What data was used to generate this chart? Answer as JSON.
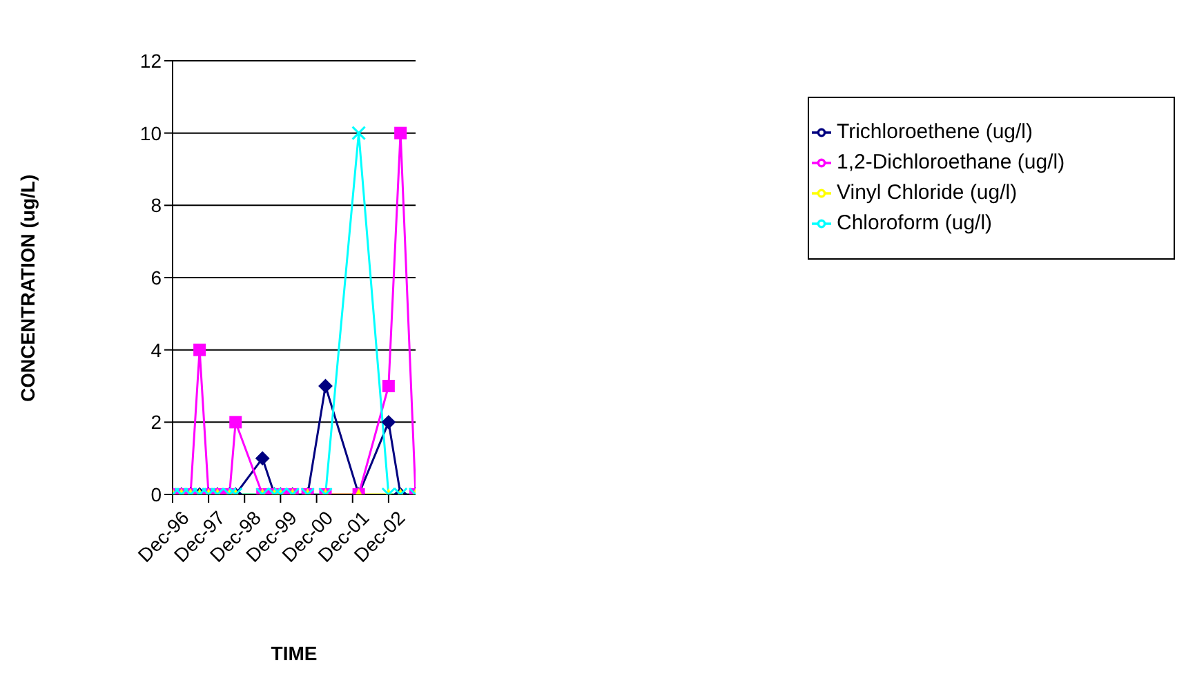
{
  "chart_data": {
    "type": "line",
    "xlabel": "TIME",
    "ylabel": "CONCENTRATION (ug/L)",
    "x": [
      "1996-12",
      "1997-03",
      "1997-06",
      "1997-09",
      "1997-12",
      "1998-03",
      "1998-07",
      "1998-09",
      "1999-06",
      "1999-10",
      "1999-12",
      "2000-04",
      "2000-09",
      "2001-03",
      "2002-02",
      "2002-12",
      "2003-04",
      "2003-09"
    ],
    "series": [
      {
        "name": "Trichloroethene (ug/l)",
        "color": "#000080",
        "marker": "diamond",
        "values": [
          0,
          0,
          0,
          0,
          0,
          0,
          0,
          0,
          1,
          0,
          0,
          0,
          0,
          3,
          0,
          2,
          0,
          0
        ]
      },
      {
        "name": "1,2-Dichloroethane (ug/l)",
        "color": "#ff00ff",
        "marker": "square",
        "values": [
          0,
          0,
          0,
          4,
          0,
          0,
          0,
          2,
          0,
          0,
          0,
          0,
          0,
          0,
          0,
          3,
          10,
          0
        ]
      },
      {
        "name": "Vinyl Chloride (ug/l)",
        "color": "#ffff00",
        "marker": "triangle",
        "values": [
          0,
          0,
          0,
          0,
          0,
          0,
          0,
          0,
          0,
          0,
          0,
          0,
          0,
          0,
          0,
          0,
          0,
          0
        ]
      },
      {
        "name": "Chloroform (ug/l)",
        "color": "#00ffff",
        "marker": "cross",
        "values": [
          0,
          0,
          0,
          0,
          0,
          0,
          0,
          0,
          0,
          0,
          0,
          0,
          0,
          0,
          10,
          0,
          0,
          0
        ]
      }
    ],
    "xlim": [
      "1996-12",
      "2003-09"
    ],
    "xticks": [
      {
        "value": "1996-12",
        "label": "Dec-96"
      },
      {
        "value": "1997-12",
        "label": "Dec-97"
      },
      {
        "value": "1998-12",
        "label": "Dec-98"
      },
      {
        "value": "1999-12",
        "label": "Dec-99"
      },
      {
        "value": "2000-12",
        "label": "Dec-00"
      },
      {
        "value": "2001-12",
        "label": "Dec-01"
      },
      {
        "value": "2002-12",
        "label": "Dec-02"
      }
    ],
    "ylim": [
      0,
      12
    ],
    "yticks": [
      0,
      2,
      4,
      6,
      8,
      10,
      12
    ],
    "grid": "y",
    "legend": "right",
    "line_style": "solid"
  }
}
